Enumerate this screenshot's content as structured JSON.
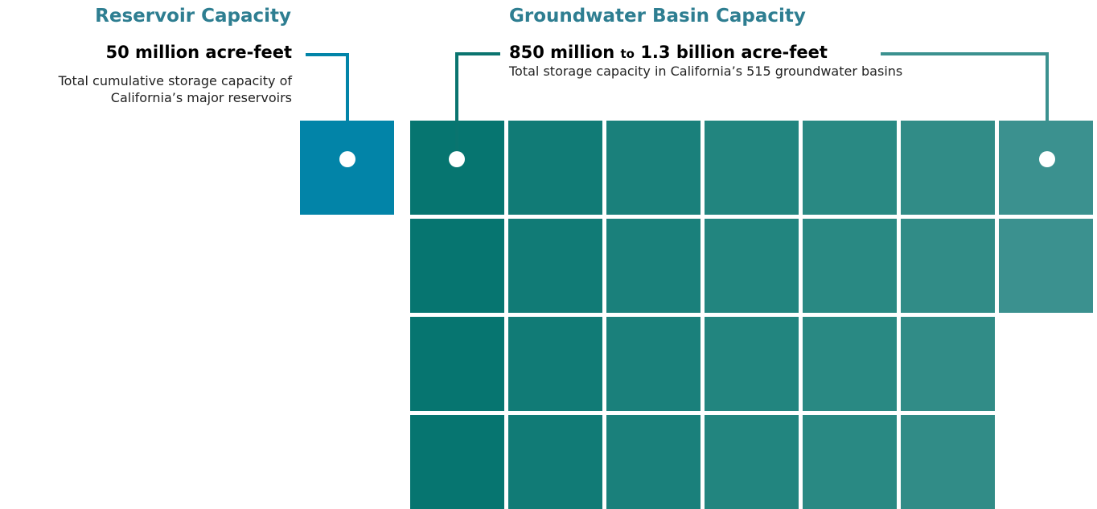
{
  "reservoir": {
    "title": "Reservoir Capacity",
    "amount": "50 million acre-feet",
    "description_line1": "Total cumulative storage capacity of",
    "description_line2": "California’s major reservoirs",
    "color": "#0284a8"
  },
  "groundwater": {
    "title": "Groundwater Basin Capacity",
    "amount_low": "850 million",
    "amount_to": "to",
    "amount_high": "1.3 billion acre-feet",
    "description": "Total storage capacity in California’s 515 groundwater basins",
    "color": "#0d7c76",
    "line_color_low": "#0a746f",
    "line_color_high": "#3b918f",
    "grid": {
      "rows": 4,
      "row_counts": [
        7,
        7,
        6,
        6
      ],
      "column_colors": [
        "#067570",
        "#117b76",
        "#1a807b",
        "#22857f",
        "#298983",
        "#318c87",
        "#3b918f"
      ]
    }
  },
  "colors": {
    "title_text": "#2e7e91",
    "connector_dot": "#ffffff"
  }
}
